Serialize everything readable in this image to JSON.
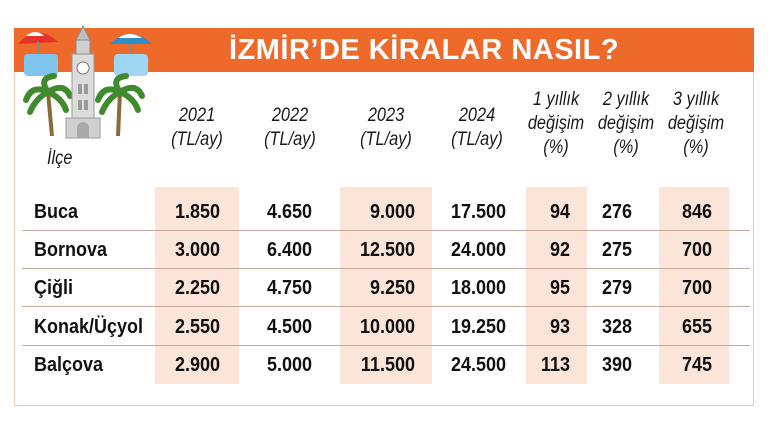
{
  "title": "İZMİR’DE KİRALAR NASIL?",
  "columns": {
    "district": "İlçe",
    "y2021": [
      "2021",
      "(TL/ay)"
    ],
    "y2022": [
      "2022",
      "(TL/ay)"
    ],
    "y2023": [
      "2023",
      "(TL/ay)"
    ],
    "y2024": [
      "2024",
      "(TL/ay)"
    ],
    "ch1": [
      "1 yıllık",
      "değişim",
      "(%)"
    ],
    "ch2": [
      "2 yıllık",
      "değişim",
      "(%)"
    ],
    "ch3": [
      "3 yıllık",
      "değişim",
      "(%)"
    ]
  },
  "rows": [
    {
      "district": "Buca",
      "y2021": "1.850",
      "y2022": "4.650",
      "y2023": "9.000",
      "y2024": "17.500",
      "ch1": "94",
      "ch2": "276",
      "ch3": "846"
    },
    {
      "district": "Bornova",
      "y2021": "3.000",
      "y2022": "6.400",
      "y2023": "12.500",
      "y2024": "24.000",
      "ch1": "92",
      "ch2": "275",
      "ch3": "700"
    },
    {
      "district": "Çiğli",
      "y2021": "2.250",
      "y2022": "4.750",
      "y2023": "9.250",
      "y2024": "18.000",
      "ch1": "95",
      "ch2": "279",
      "ch3": "700"
    },
    {
      "district": "Konak/Üçyol",
      "y2021": "2.550",
      "y2022": "4.500",
      "y2023": "10.000",
      "y2024": "19.250",
      "ch1": "93",
      "ch2": "328",
      "ch3": "655"
    },
    {
      "district": "Balçova",
      "y2021": "2.900",
      "y2022": "5.000",
      "y2023": "11.500",
      "y2024": "24.500",
      "ch1": "113",
      "ch2": "390",
      "ch3": "745"
    }
  ],
  "colors": {
    "title_bar": "#ee6a2b",
    "shade": "#fbe5d8",
    "text": "#111111"
  },
  "icons": [
    "clock-tower-icon",
    "palm-tree-icon",
    "beach-umbrella-icon"
  ]
}
